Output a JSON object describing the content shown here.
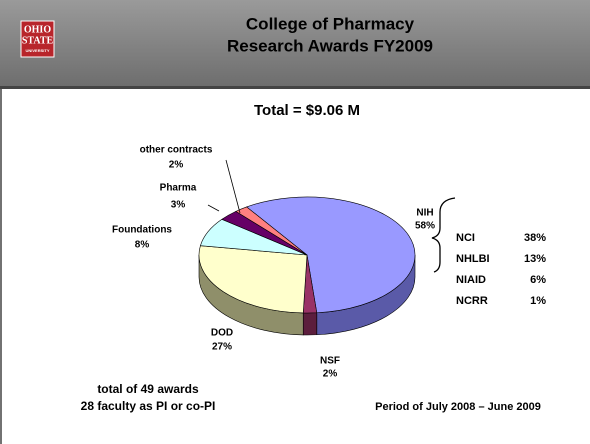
{
  "header": {
    "logo": [
      "OHIO",
      "STATE",
      "UNIVERSITY"
    ],
    "title": [
      "College of Pharmacy",
      "Research Awards FY2009"
    ]
  },
  "chart_data": {
    "type": "pie",
    "title": "Total = $9.06 M",
    "categories": [
      "NIH",
      "NSF",
      "DOD",
      "Foundations",
      "Pharma",
      "other contracts"
    ],
    "values": [
      58,
      2,
      27,
      8,
      3,
      2
    ],
    "value_labels": [
      "58%",
      "2%",
      "27%",
      "8%",
      "3%",
      "2%"
    ],
    "colors": [
      "#9999ff",
      "#993366",
      "#ffffcc",
      "#ccffff",
      "#660066",
      "#ff8080"
    ],
    "side_colors": [
      "#5a5aa8",
      "#5c1e3d",
      "#8f8f6a",
      "#7aa3a3",
      "#3a003a",
      "#b34d4d"
    ]
  },
  "breakdown": {
    "rows": [
      {
        "name": "NCI",
        "value": "38%"
      },
      {
        "name": "NHLBI",
        "value": "13%"
      },
      {
        "name": "NIAID",
        "value": "6%"
      },
      {
        "name": "NCRR",
        "value": "1%"
      }
    ]
  },
  "footer": {
    "left": [
      "total of 49 awards",
      "28 faculty as PI or co-PI"
    ],
    "right": "Period of July 2008 – June 2009"
  }
}
